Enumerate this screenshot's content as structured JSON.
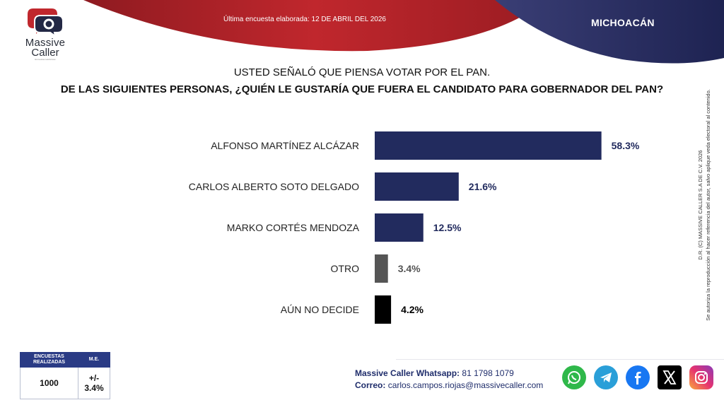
{
  "brand": {
    "name_line1": "Massive",
    "name_line2": "Caller",
    "tagline": "Encuestas telefónicas"
  },
  "header": {
    "last_poll": "Última encuesta elaborada: 12 DE ABRIL DEL 2026",
    "region": "MICHOACÁN"
  },
  "question": {
    "line1": "USTED SEÑALÓ QUE PIENSA VOTAR POR EL PAN.",
    "line2": "DE LAS SIGUIENTES PERSONAS, ¿QUIÉN LE GUSTARÍA QUE FUERA EL CANDIDATO PARA GOBERNADOR DEL PAN?"
  },
  "chart_data": {
    "type": "bar",
    "orientation": "horizontal",
    "categories": [
      "ALFONSO MARTÍNEZ ALCÁZAR",
      "CARLOS ALBERTO SOTO DELGADO",
      "MARKO CORTÉS MENDOZA",
      "OTRO",
      "AÚN NO DECIDE"
    ],
    "values": [
      58.3,
      21.6,
      12.5,
      3.4,
      4.2
    ],
    "value_labels": [
      "58.3%",
      "21.6%",
      "12.5%",
      "3.4%",
      "4.2%"
    ],
    "colors": [
      "#222b5e",
      "#222b5e",
      "#222b5e",
      "#555555",
      "#000000"
    ],
    "label_colors": [
      "#222b5e",
      "#222b5e",
      "#222b5e",
      "#555555",
      "#000000"
    ],
    "xlim": [
      0,
      60
    ],
    "grid": false,
    "legend": "none"
  },
  "side_note": {
    "line1": "D.R. (C) MASSIVE CALLER S.A DE C.V. 2026",
    "line2": "Se autoriza la reproducción al hacer referencia del autor, salvo aplique veda electoral al contenido."
  },
  "stats": {
    "col1_header": "ENCUESTAS REALIZADAS",
    "col2_header": "M.E.",
    "surveys": "1000",
    "margin": "+/- 3.4%"
  },
  "contact": {
    "whatsapp_label": "Massive Caller Whatsapp:",
    "whatsapp_value": "81 1798 1079",
    "email_label": "Correo:",
    "email_value": "carlos.campos.riojas@massivecaller.com"
  },
  "socials": [
    "whatsapp-icon",
    "telegram-icon",
    "facebook-icon",
    "x-icon",
    "instagram-icon"
  ],
  "colors": {
    "accent_red": "#c0272d",
    "accent_navy": "#222b5e"
  }
}
